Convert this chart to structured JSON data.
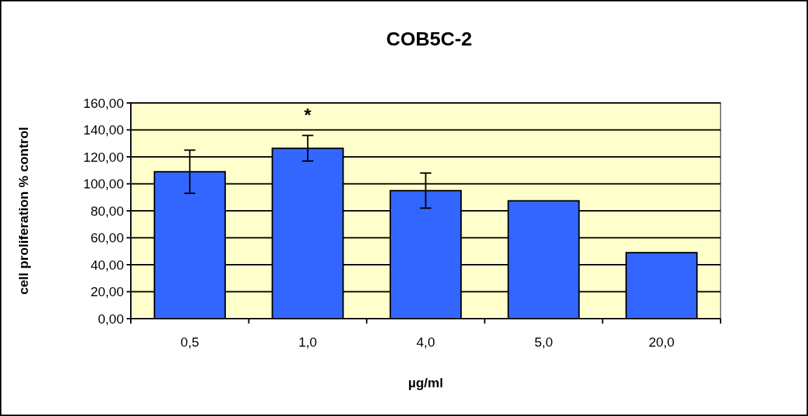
{
  "chart_data": {
    "type": "bar",
    "title": "COB5C-2",
    "xlabel": "µg/ml",
    "ylabel": "cell proliferation % control",
    "categories": [
      "0,5",
      "1,0",
      "4,0",
      "5,0",
      "20,0"
    ],
    "values": [
      109,
      126.4,
      95,
      87.4,
      49
    ],
    "errors": [
      16,
      9.5,
      13,
      null,
      null
    ],
    "color": "#3366ff",
    "ylim": [
      0,
      160
    ],
    "yticks": [
      {
        "value": 0,
        "label": "0,00"
      },
      {
        "value": 20,
        "label": "20,00"
      },
      {
        "value": 40,
        "label": "40,00"
      },
      {
        "value": 60,
        "label": "60,00"
      },
      {
        "value": 80,
        "label": "80,00"
      },
      {
        "value": 100,
        "label": "100,00"
      },
      {
        "value": 120,
        "label": "120,00"
      },
      {
        "value": 140,
        "label": "140,00"
      },
      {
        "value": 160,
        "label": "160,00"
      }
    ],
    "grid": "y",
    "annotations": [
      "*"
    ]
  }
}
